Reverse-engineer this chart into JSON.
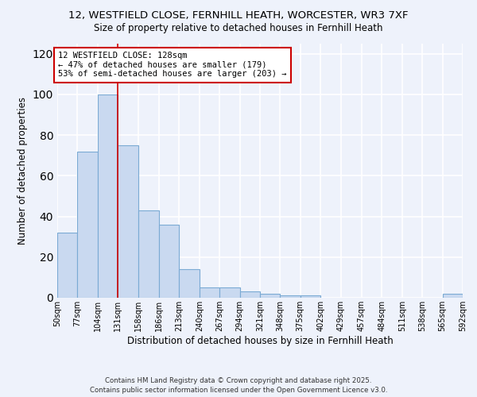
{
  "title_line1": "12, WESTFIELD CLOSE, FERNHILL HEATH, WORCESTER, WR3 7XF",
  "title_line2": "Size of property relative to detached houses in Fernhill Heath",
  "xlabel": "Distribution of detached houses by size in Fernhill Heath",
  "ylabel": "Number of detached properties",
  "bin_edges": [
    50,
    77,
    104,
    131,
    158,
    186,
    213,
    240,
    267,
    294,
    321,
    348,
    375,
    402,
    429,
    457,
    484,
    511,
    538,
    565,
    592
  ],
  "bin_labels": [
    "50sqm",
    "77sqm",
    "104sqm",
    "131sqm",
    "158sqm",
    "186sqm",
    "213sqm",
    "240sqm",
    "267sqm",
    "294sqm",
    "321sqm",
    "348sqm",
    "375sqm",
    "402sqm",
    "429sqm",
    "457sqm",
    "484sqm",
    "511sqm",
    "538sqm",
    "565sqm",
    "592sqm"
  ],
  "bar_heights": [
    32,
    72,
    100,
    75,
    43,
    36,
    14,
    5,
    5,
    3,
    2,
    1,
    1,
    0,
    0,
    0,
    0,
    0,
    0,
    2
  ],
  "bar_color": "#c9d9f0",
  "bar_edge_color": "#7baad4",
  "reference_line_x": 131,
  "reference_line_color": "#cc0000",
  "annotation_text": "12 WESTFIELD CLOSE: 128sqm\n← 47% of detached houses are smaller (179)\n53% of semi-detached houses are larger (203) →",
  "annotation_box_color": "white",
  "annotation_box_edge_color": "#cc0000",
  "ylim": [
    0,
    125
  ],
  "yticks": [
    0,
    20,
    40,
    60,
    80,
    100,
    120
  ],
  "footer_line1": "Contains HM Land Registry data © Crown copyright and database right 2025.",
  "footer_line2": "Contains public sector information licensed under the Open Government Licence v3.0.",
  "background_color": "#eef2fb"
}
